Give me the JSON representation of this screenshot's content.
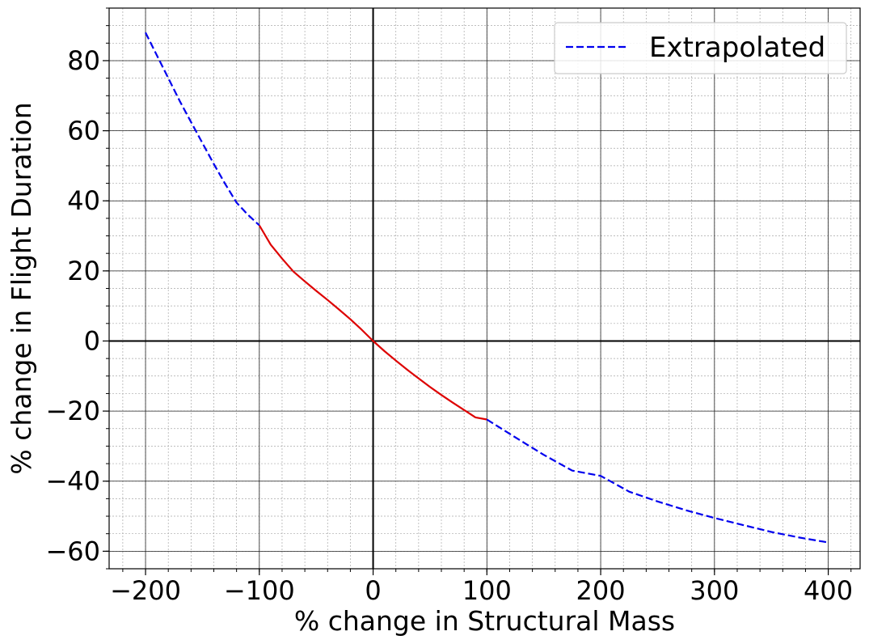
{
  "chart_data": {
    "type": "line",
    "xlabel": "% change in Structural Mass",
    "ylabel": "% change in Flight Duration",
    "xlim": [
      -232,
      428
    ],
    "ylim": [
      -65,
      95
    ],
    "xticks": [
      -200,
      -100,
      0,
      100,
      200,
      300,
      400
    ],
    "yticks": [
      -60,
      -40,
      -20,
      0,
      20,
      40,
      60,
      80
    ],
    "xtick_labels": [
      "−200",
      "−100",
      "0",
      "100",
      "200",
      "300",
      "400"
    ],
    "ytick_labels": [
      "−60",
      "−40",
      "−20",
      "0",
      "20",
      "40",
      "60",
      "80"
    ],
    "x_minor_step": 20,
    "y_minor_step": 5,
    "grid": true,
    "legend_position": "top-right",
    "series": [
      {
        "name": "",
        "color": "#dd0000",
        "style": "solid",
        "x": [
          -100,
          -90,
          -80,
          -70,
          -60,
          -50,
          -40,
          -30,
          -20,
          -10,
          0,
          10,
          20,
          30,
          40,
          50,
          60,
          70,
          80,
          90,
          100
        ],
        "y": [
          33,
          27.5,
          23.5,
          19.8,
          17,
          14.3,
          11.7,
          9,
          6.2,
          3.2,
          0,
          -2.9,
          -5.6,
          -8.2,
          -10.7,
          -13.1,
          -15.4,
          -17.6,
          -19.7,
          -21.8,
          -22.4
        ]
      },
      {
        "name": "Extrapolated",
        "color": "#0000ee",
        "style": "dashed",
        "x": [
          -200,
          -190,
          -180,
          -170,
          -160,
          -150,
          -140,
          -130,
          -120,
          -110,
          -100
        ],
        "y": [
          88,
          81.5,
          75,
          68.5,
          62.5,
          56.5,
          50.5,
          44.8,
          39.5,
          36,
          33
        ]
      },
      {
        "name": "Extrapolated",
        "color": "#0000ee",
        "style": "dashed",
        "x": [
          100,
          125,
          150,
          175,
          200,
          225,
          250,
          275,
          300,
          325,
          350,
          375,
          400
        ],
        "y": [
          -22.4,
          -27.5,
          -32.5,
          -37,
          -38.5,
          -43,
          -45.8,
          -48.3,
          -50.5,
          -52.5,
          -54.5,
          -56.1,
          -57.5
        ]
      }
    ]
  }
}
